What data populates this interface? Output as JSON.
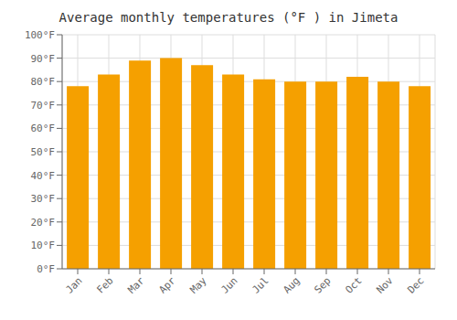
{
  "chart_data": {
    "type": "bar",
    "title": "Average monthly temperatures (°F ) in Jimeta",
    "categories": [
      "Jan",
      "Feb",
      "Mar",
      "Apr",
      "May",
      "Jun",
      "Jul",
      "Aug",
      "Sep",
      "Oct",
      "Nov",
      "Dec"
    ],
    "values": [
      78,
      83,
      89,
      90,
      87,
      83,
      81,
      80,
      80,
      82,
      80,
      78
    ],
    "color": "#F5A000",
    "ylim": [
      0,
      100
    ],
    "yticks": [
      {
        "value": 0,
        "label": "0°F"
      },
      {
        "value": 10,
        "label": "10°F"
      },
      {
        "value": 20,
        "label": "20°F"
      },
      {
        "value": 30,
        "label": "30°F"
      },
      {
        "value": 40,
        "label": "40°F"
      },
      {
        "value": 50,
        "label": "50°F"
      },
      {
        "value": 60,
        "label": "60°F"
      },
      {
        "value": 70,
        "label": "70°F"
      },
      {
        "value": 80,
        "label": "80°F"
      },
      {
        "value": 90,
        "label": "90°F"
      },
      {
        "value": 100,
        "label": "100°F"
      }
    ],
    "grid": true
  }
}
